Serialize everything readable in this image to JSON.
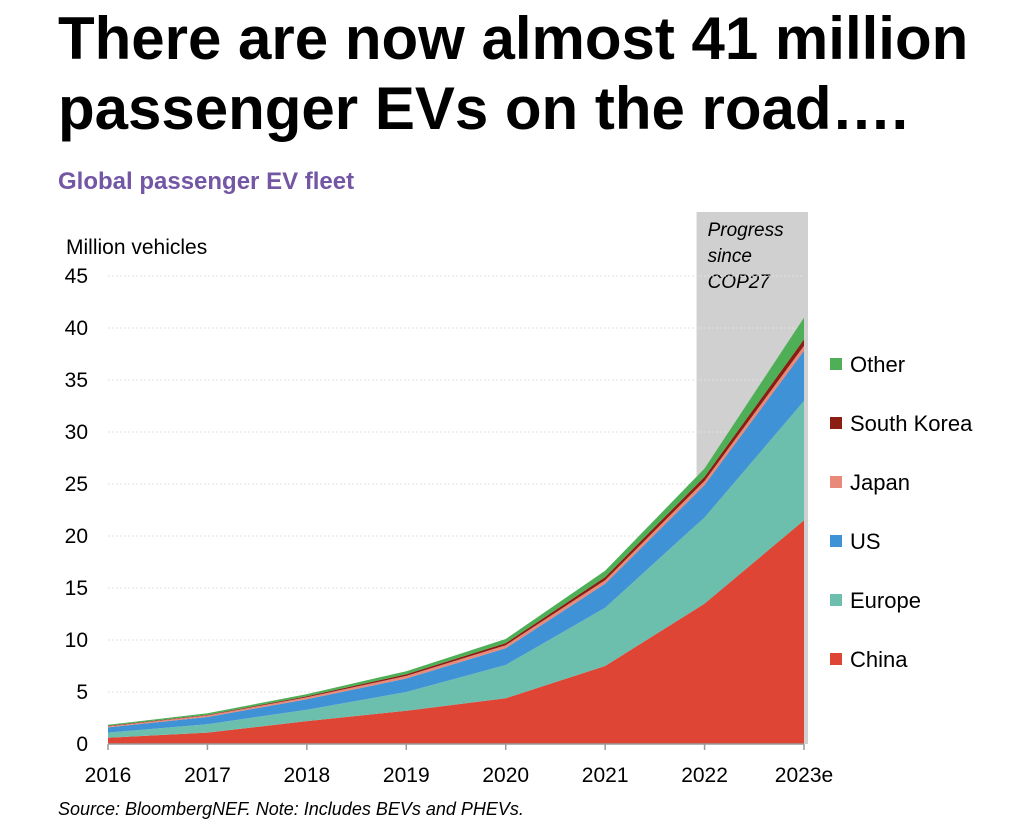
{
  "headline": "There are now almost 41 million passenger EVs on the road….",
  "chart_data": {
    "type": "area",
    "title": "Global passenger EV fleet",
    "ylabel": "Million vehicles",
    "xlabel": "",
    "ylim": [
      0,
      45
    ],
    "yticks": [
      0,
      5,
      10,
      15,
      20,
      25,
      30,
      35,
      40,
      45
    ],
    "categories": [
      "2016",
      "2017",
      "2018",
      "2019",
      "2020",
      "2021",
      "2022",
      "2023e"
    ],
    "stacked": true,
    "grid": true,
    "legend_position": "right",
    "series": [
      {
        "name": "China",
        "color": "#de4535",
        "values": [
          0.6,
          1.1,
          2.2,
          3.2,
          4.4,
          7.5,
          13.5,
          21.5
        ]
      },
      {
        "name": "Europe",
        "color": "#6cbfad",
        "values": [
          0.5,
          0.8,
          1.1,
          1.8,
          3.2,
          5.6,
          8.3,
          11.5
        ]
      },
      {
        "name": "US",
        "color": "#4092d6",
        "values": [
          0.5,
          0.7,
          1.0,
          1.3,
          1.6,
          2.3,
          3.1,
          4.8
        ]
      },
      {
        "name": "Japan",
        "color": "#e8897a",
        "values": [
          0.1,
          0.15,
          0.2,
          0.25,
          0.3,
          0.35,
          0.4,
          0.5
        ]
      },
      {
        "name": "South Korea",
        "color": "#8b1d12",
        "values": [
          0.05,
          0.05,
          0.1,
          0.15,
          0.2,
          0.3,
          0.4,
          0.6
        ]
      },
      {
        "name": "Other",
        "color": "#4faf57",
        "values": [
          0.1,
          0.15,
          0.2,
          0.3,
          0.4,
          0.6,
          0.8,
          2.1
        ]
      }
    ],
    "highlight": {
      "from": "2022",
      "to": "2023e",
      "label_lines": [
        "Progress",
        "since",
        "COP27"
      ],
      "color": "#d0d0d0"
    }
  },
  "source_note": "Source: BloombergNEF. Note: Includes BEVs and PHEVs."
}
